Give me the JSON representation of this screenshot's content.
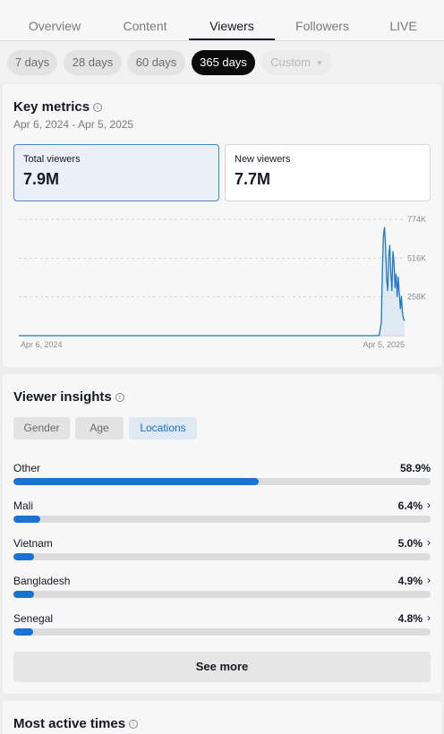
{
  "tabs": [
    {
      "label": "Overview",
      "active": false
    },
    {
      "label": "Content",
      "active": false
    },
    {
      "label": "Viewers",
      "active": true
    },
    {
      "label": "Followers",
      "active": false
    },
    {
      "label": "LIVE",
      "active": false
    }
  ],
  "periods": [
    {
      "label": "7 days",
      "state": "normal"
    },
    {
      "label": "28 days",
      "state": "normal"
    },
    {
      "label": "60 days",
      "state": "normal"
    },
    {
      "label": "365 days",
      "state": "active"
    },
    {
      "label": "Custom",
      "state": "disabled"
    }
  ],
  "key_metrics": {
    "title": "Key metrics",
    "date_range": "Apr 6, 2024 - Apr 5, 2025",
    "metrics": [
      {
        "label": "Total viewers",
        "value": "7.9M",
        "active": true
      },
      {
        "label": "New viewers",
        "value": "7.7M",
        "active": false
      }
    ]
  },
  "chart_data": {
    "type": "area",
    "title": "",
    "xlabel": "",
    "ylabel": "",
    "y_ticks": [
      "774K",
      "516K",
      "258K"
    ],
    "y_tick_values": [
      774000,
      516000,
      258000
    ],
    "ylim": [
      0,
      774000
    ],
    "x_tick_labels": [
      "Apr 6, 2024",
      "Apr 5, 2025"
    ],
    "x_range_days": [
      0,
      364
    ],
    "grid": true,
    "color": "#1f77c9",
    "points": [
      [
        0,
        0
      ],
      [
        336,
        0
      ],
      [
        340,
        2000
      ],
      [
        342,
        90000
      ],
      [
        343,
        420000
      ],
      [
        344,
        660000
      ],
      [
        345,
        720000
      ],
      [
        346,
        600000
      ],
      [
        347,
        380000
      ],
      [
        348,
        300000
      ],
      [
        349,
        520000
      ],
      [
        350,
        600000
      ],
      [
        351,
        420000
      ],
      [
        352,
        300000
      ],
      [
        353,
        560000
      ],
      [
        354,
        480000
      ],
      [
        355,
        320000
      ],
      [
        356,
        410000
      ],
      [
        357,
        260000
      ],
      [
        358,
        390000
      ],
      [
        359,
        280000
      ],
      [
        360,
        180000
      ],
      [
        361,
        260000
      ],
      [
        362,
        150000
      ],
      [
        363,
        110000
      ],
      [
        364,
        100000
      ]
    ]
  },
  "viewer_insights": {
    "title": "Viewer insights",
    "segments": [
      {
        "label": "Gender",
        "active": false
      },
      {
        "label": "Age",
        "active": false
      },
      {
        "label": "Locations",
        "active": true
      }
    ],
    "locations": [
      {
        "name": "Other",
        "pct": "58.9%",
        "value": 58.9,
        "chevron": false
      },
      {
        "name": "Mali",
        "pct": "6.4%",
        "value": 6.4,
        "chevron": true
      },
      {
        "name": "Vietnam",
        "pct": "5.0%",
        "value": 5.0,
        "chevron": true
      },
      {
        "name": "Bangladesh",
        "pct": "4.9%",
        "value": 4.9,
        "chevron": true
      },
      {
        "name": "Senegal",
        "pct": "4.8%",
        "value": 4.8,
        "chevron": true
      }
    ],
    "see_more_label": "See more",
    "bar_color": "#1b73d1"
  },
  "most_active_times": {
    "title": "Most active times"
  },
  "icons": {
    "info": "info-icon",
    "chevron": "chevron-right-icon",
    "caret": "caret-down-icon"
  }
}
